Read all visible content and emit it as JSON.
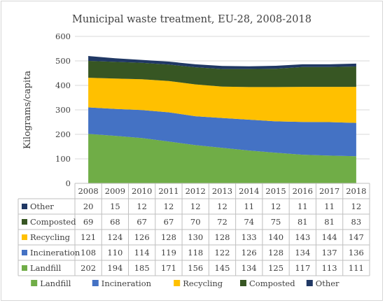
{
  "chart_data": {
    "type": "area",
    "stacked": true,
    "title": "Municipal waste treatment, EU-28, 2008-2018",
    "ylabel": "Kilograms/capita",
    "xlabel": "",
    "ylim": [
      0,
      600
    ],
    "yticks": [
      "0",
      "100",
      "200",
      "300",
      "400",
      "500",
      "600"
    ],
    "grid": true,
    "legend_position": "bottom",
    "categories": [
      "2008",
      "2009",
      "2010",
      "2011",
      "2012",
      "2013",
      "2014",
      "2015",
      "2016",
      "2017",
      "2018"
    ],
    "series": [
      {
        "name": "Landfill",
        "color": "#70ad47",
        "values": [
          202,
          194,
          185,
          171,
          156,
          145,
          134,
          125,
          117,
          113,
          111
        ]
      },
      {
        "name": "Incineration",
        "color": "#4472c4",
        "values": [
          108,
          110,
          114,
          119,
          118,
          122,
          126,
          128,
          134,
          137,
          136
        ]
      },
      {
        "name": "Recycling",
        "color": "#ffc000",
        "values": [
          121,
          124,
          126,
          128,
          130,
          128,
          133,
          140,
          143,
          144,
          147
        ]
      },
      {
        "name": "Composted",
        "color": "#375623",
        "values": [
          69,
          68,
          67,
          67,
          70,
          72,
          74,
          75,
          81,
          81,
          83
        ]
      },
      {
        "name": "Other",
        "color": "#203864",
        "values": [
          20,
          15,
          12,
          12,
          12,
          12,
          11,
          12,
          11,
          11,
          12
        ]
      }
    ],
    "table_row_order": [
      "Other",
      "Composted",
      "Recycling",
      "Incineration",
      "Landfill"
    ]
  }
}
